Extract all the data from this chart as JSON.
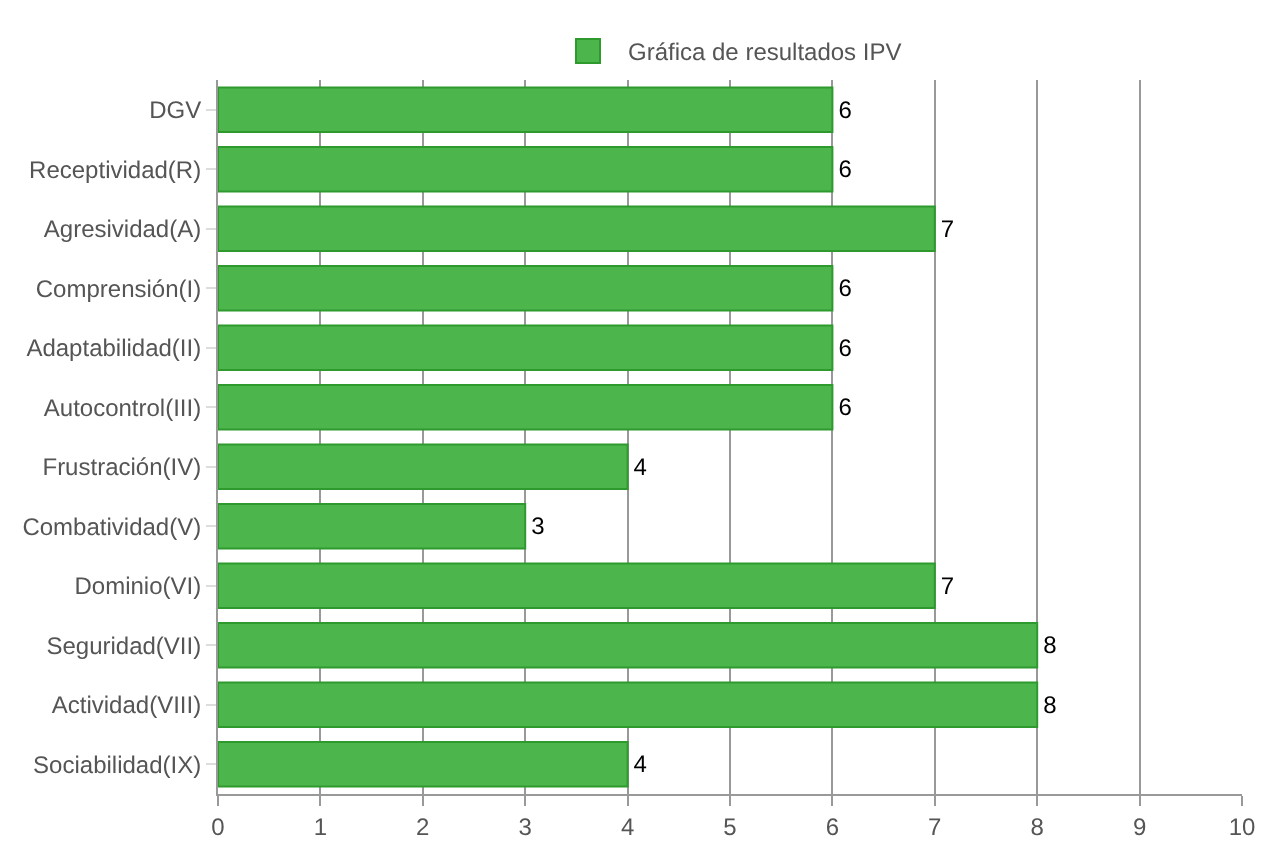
{
  "chart_data": {
    "type": "bar",
    "orientation": "horizontal",
    "categories": [
      "DGV",
      "Receptividad(R)",
      "Agresividad(A)",
      "Comprensión(I)",
      "Adaptabilidad(II)",
      "Autocontrol(III)",
      "Frustración(IV)",
      "Combatividad(V)",
      "Dominio(VI)",
      "Seguridad(VII)",
      "Actividad(VIII)",
      "Sociabilidad(IX)"
    ],
    "series": [
      {
        "name": "Gráfica de resultados IPV",
        "color": "#4cb64c",
        "values": [
          6,
          6,
          7,
          6,
          6,
          6,
          4,
          3,
          7,
          8,
          8,
          4
        ]
      }
    ],
    "xlim": [
      0,
      10
    ],
    "xticks": [
      0,
      1,
      2,
      3,
      4,
      5,
      6,
      7,
      8,
      9,
      10
    ],
    "grid": "x",
    "legend": "top",
    "data_labels": true
  }
}
